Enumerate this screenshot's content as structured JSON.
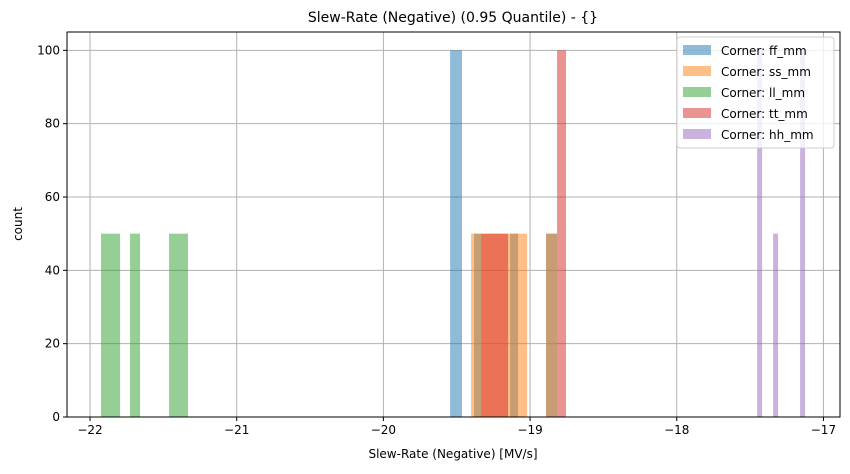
{
  "chart_data": {
    "type": "bar",
    "title": "Slew-Rate (Negative) (0.95 Quantile) - {}",
    "xlabel": "Slew-Rate (Negative) [MV/s]",
    "ylabel": "count",
    "xlim": [
      -22.157,
      -16.887
    ],
    "ylim": [
      0,
      105
    ],
    "xticks": [
      -22,
      -21,
      -20,
      -19,
      -18,
      -17
    ],
    "xtick_labels": [
      "−22",
      "−21",
      "−20",
      "−19",
      "−18",
      "−17"
    ],
    "yticks": [
      0,
      20,
      40,
      60,
      80,
      100
    ],
    "ytick_labels": [
      "0",
      "20",
      "40",
      "60",
      "80",
      "100"
    ],
    "grid": true,
    "legend_position": "top-right",
    "bar_alpha": 0.5,
    "series": [
      {
        "name": "Corner: ff_mm",
        "color": "#1f77b4",
        "bins": [
          [
            -19.545,
            -19.464,
            100
          ],
          [
            -19.382,
            -19.334,
            50
          ],
          [
            -19.136,
            -19.082,
            50
          ],
          [
            -18.891,
            -18.83,
            50
          ],
          [
            -18.83,
            -18.816,
            50
          ]
        ]
      },
      {
        "name": "Corner: ss_mm",
        "color": "#ff7f0e",
        "bins": [
          [
            -19.402,
            -19.02,
            50
          ],
          [
            -18.891,
            -18.816,
            50
          ]
        ]
      },
      {
        "name": "Corner: ll_mm",
        "color": "#2ca02c",
        "bins": [
          [
            -21.925,
            -21.795,
            50
          ],
          [
            -21.727,
            -21.659,
            50
          ],
          [
            -21.461,
            -21.332,
            50
          ]
        ]
      },
      {
        "name": "Corner: tt_mm",
        "color": "#d62728",
        "bins": [
          [
            -19.334,
            -19.15,
            50
          ],
          [
            -18.816,
            -18.755,
            100
          ]
        ]
      },
      {
        "name": "Corner: hh_mm",
        "color": "#9467bd",
        "bins": [
          [
            -17.452,
            -17.418,
            100
          ],
          [
            -17.343,
            -17.309,
            50
          ],
          [
            -17.159,
            -17.125,
            100
          ]
        ]
      }
    ]
  }
}
